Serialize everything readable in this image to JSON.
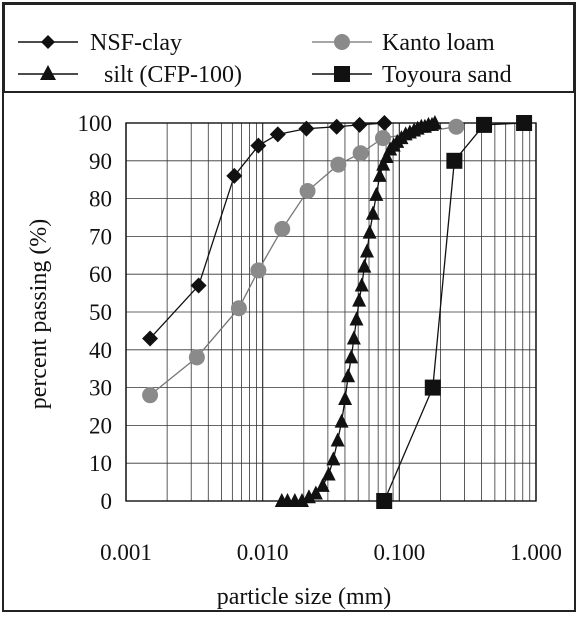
{
  "chart_data": {
    "type": "scatter",
    "title": "",
    "xlabel": "particle size (mm)",
    "ylabel": "percent passing (%)",
    "x_scale": "log",
    "xlim": [
      0.001,
      1.0
    ],
    "ylim": [
      0,
      100
    ],
    "x_ticks": [
      "0.001",
      "0.010",
      "0.100",
      "1.000"
    ],
    "y_ticks": [
      "0",
      "10",
      "20",
      "30",
      "40",
      "50",
      "60",
      "70",
      "80",
      "90",
      "100"
    ],
    "grid": true,
    "legend_position": "top",
    "series": [
      {
        "name": "NSF-clay",
        "marker": "diamond",
        "color": "#111111",
        "x": [
          0.0015,
          0.0034,
          0.0062,
          0.0093,
          0.0129,
          0.0209,
          0.0348,
          0.0512,
          0.0778
        ],
        "y": [
          43,
          57,
          86,
          94,
          97,
          98.5,
          99,
          99.5,
          100
        ]
      },
      {
        "name": "Kanto loam",
        "marker": "circle",
        "color": "#8a8a8a",
        "x": [
          0.0015,
          0.0033,
          0.0067,
          0.0093,
          0.0139,
          0.0213,
          0.0358,
          0.0521,
          0.0759,
          0.2612
        ],
        "y": [
          28,
          38,
          51,
          61,
          72,
          82,
          89,
          92,
          96,
          99
        ]
      },
      {
        "name": "silt (CFP-100)",
        "marker": "triangle",
        "color": "#111111",
        "x": [
          0.0138,
          0.0152,
          0.0172,
          0.0194,
          0.0218,
          0.0245,
          0.0275,
          0.0304,
          0.0329,
          0.0354,
          0.0378,
          0.0401,
          0.0422,
          0.0445,
          0.0465,
          0.0486,
          0.0508,
          0.0531,
          0.0555,
          0.058,
          0.0606,
          0.0641,
          0.0679,
          0.0719,
          0.0762,
          0.0808,
          0.0857,
          0.0909,
          0.0965,
          0.1036,
          0.1112,
          0.1194,
          0.1282,
          0.1362,
          0.1448,
          0.1538,
          0.1633,
          0.1734,
          0.1821
        ],
        "y": [
          0,
          0,
          0,
          0,
          1,
          2,
          4,
          7,
          11,
          16,
          21,
          27,
          33,
          38,
          43,
          48,
          53,
          57,
          62,
          66,
          71,
          76,
          81,
          86,
          89,
          91,
          93,
          94,
          95,
          96,
          97,
          97.5,
          98,
          98.5,
          99,
          99,
          99.5,
          99.5,
          100
        ]
      },
      {
        "name": "Toyoura sand",
        "marker": "square",
        "color": "#111111",
        "x": [
          0.0775,
          0.1757,
          0.2528,
          0.4168,
          0.8181
        ],
        "y": [
          0,
          30,
          90,
          99.5,
          100
        ]
      }
    ]
  }
}
